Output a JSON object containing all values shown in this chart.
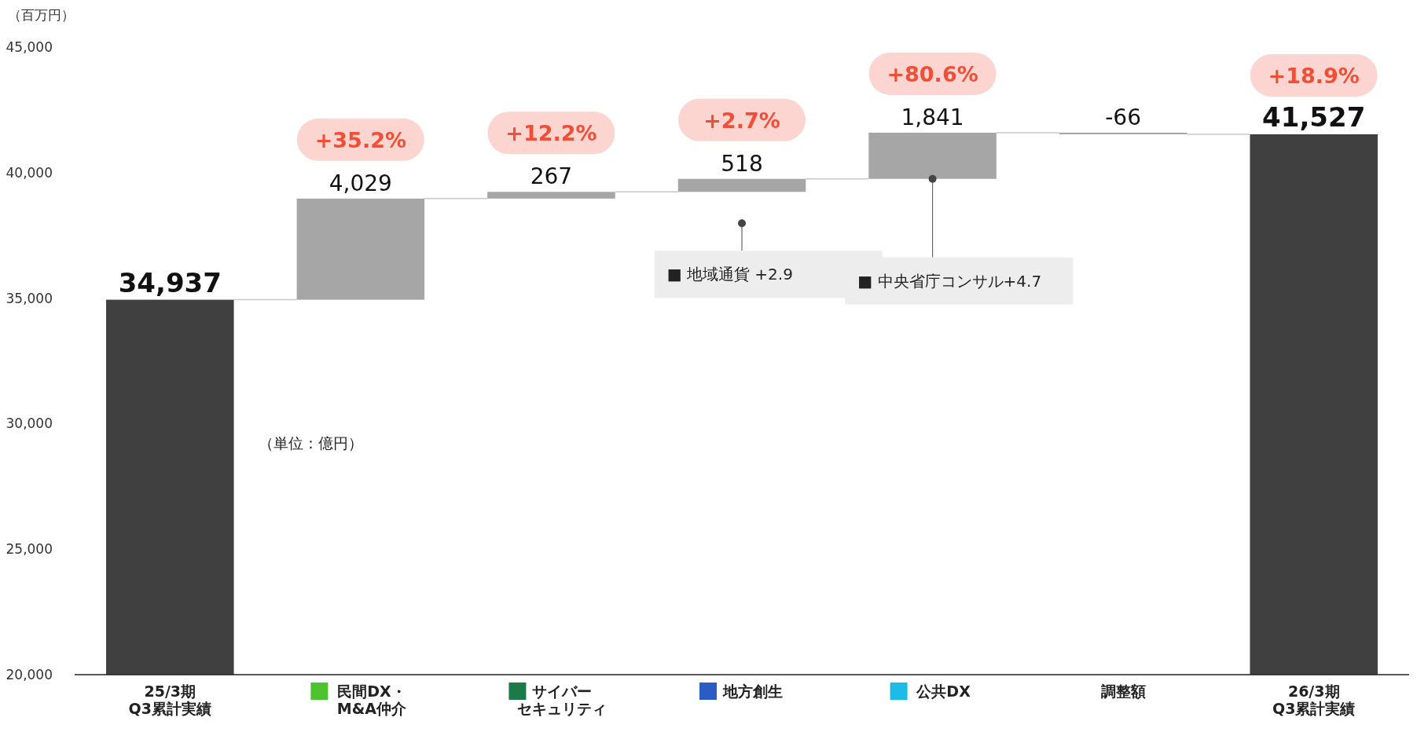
{
  "chart_data": {
    "type": "bar",
    "ylabel": "（百万円）",
    "categories": [
      "25/3期\nQ3累計実績",
      "民間DX・\nM&A仲介",
      "サイバーセキュリティ",
      "地方創生",
      "公共DX",
      "調整額",
      "26/3期\nQ3累計実績"
    ],
    "values": [
      34937,
      4029,
      267,
      518,
      1841,
      -66,
      41527
    ],
    "base": [
      null,
      34937,
      38966,
      39233,
      39751,
      41592,
      null
    ],
    "colors": [
      "#404040",
      "#a6a6a6",
      "#a6a6a6",
      "#a6a6a6",
      "#a6a6a6",
      "#a6a6a6",
      "#404040"
    ],
    "value_labels": [
      "34,937",
      "4,029",
      "267",
      "518",
      "1,841",
      "-66",
      "41,527"
    ],
    "ylim": [
      20000,
      45000
    ],
    "yticks": [
      {
        "value": 20000,
        "label": "20,000"
      },
      {
        "value": 25000,
        "label": "25,000"
      },
      {
        "value": 30000,
        "label": "30,000"
      },
      {
        "value": 35000,
        "label": "35,000"
      },
      {
        "value": 40000,
        "label": "40,000"
      },
      {
        "value": 45000,
        "label": "45,000"
      }
    ],
    "annotations": [
      "+35.2%",
      "+12.2%",
      "+2.7%",
      "+80.6%",
      "+18.9%",
      "■ 地域通貨 +2.9",
      {
        "text": "■ 中央省庁コンサル+4.7",
        "x": "公共DX",
        "y": 39751
      },
      "（単位：億円）"
    ]
  }
}
